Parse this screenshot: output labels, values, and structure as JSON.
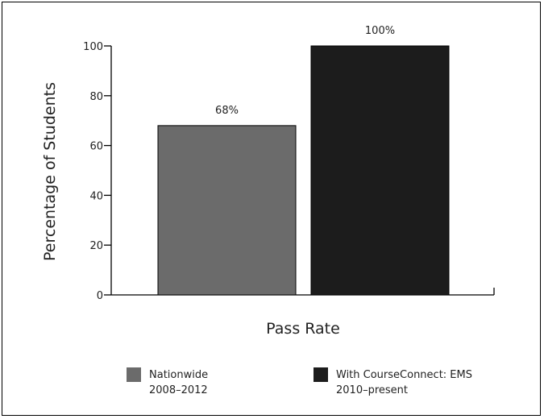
{
  "chart_data": {
    "type": "bar",
    "categories": [
      "Nationwide 2008–2012",
      "With CourseConnect: EMS 2010–present"
    ],
    "values": [
      68,
      100
    ],
    "value_labels": [
      "68%",
      "100%"
    ],
    "xlabel": "Pass Rate",
    "ylabel": "Percentage of Students",
    "ylim": [
      0,
      100
    ],
    "yticks": [
      0,
      20,
      40,
      60,
      80,
      100
    ],
    "grid": false,
    "legend_position": "bottom",
    "legend": [
      {
        "line1": "Nationwide",
        "line2": "2008–2012",
        "color": "#6b6b6b"
      },
      {
        "line1": "With CourseConnect: EMS",
        "line2": "2010–present",
        "color": "#1c1c1c"
      }
    ],
    "colors": [
      "#6b6b6b",
      "#1c1c1c"
    ]
  }
}
